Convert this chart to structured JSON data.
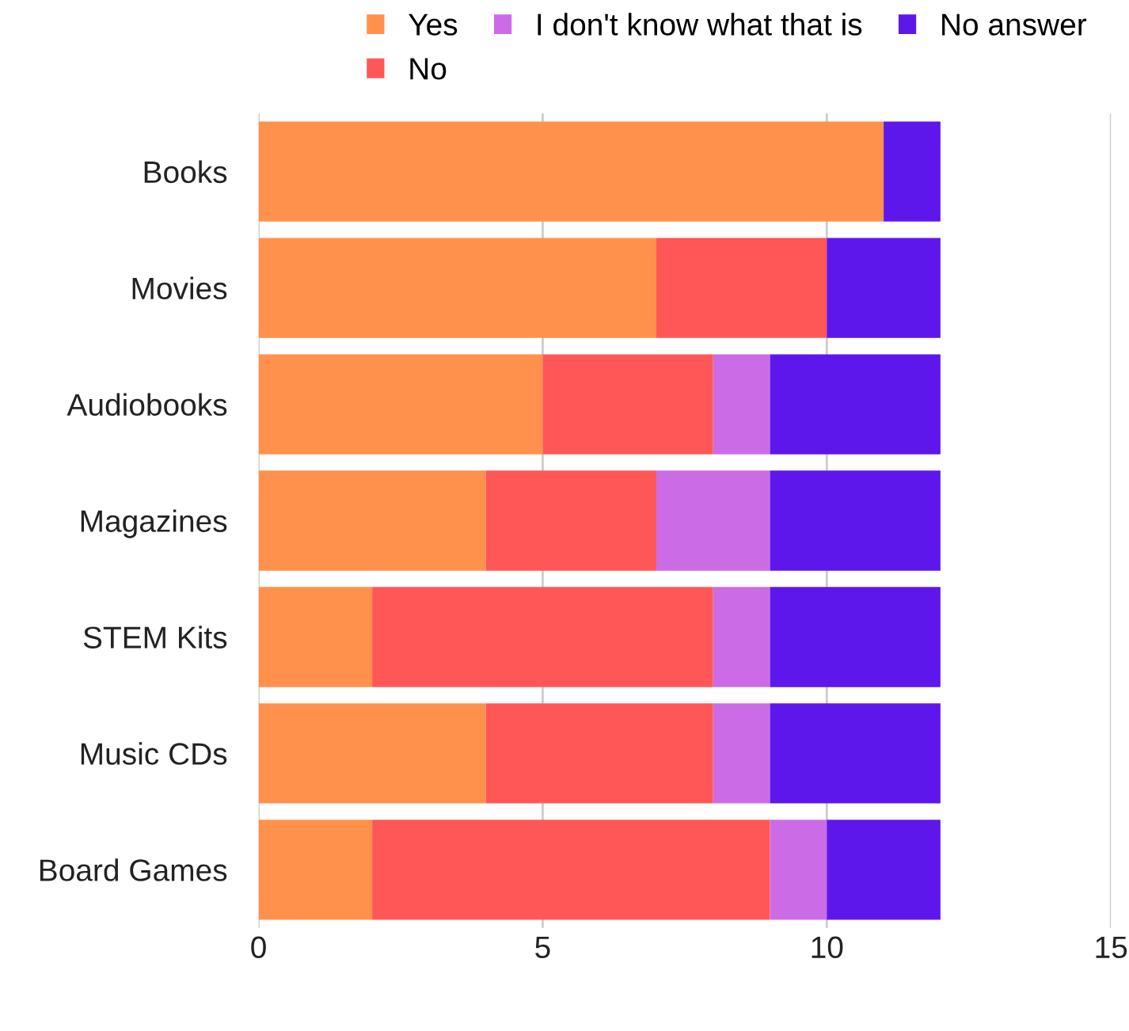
{
  "chart_data": {
    "type": "bar",
    "orientation": "horizontal",
    "stacked": true,
    "categories": [
      "Books",
      "Movies",
      "Audiobooks",
      "Magazines",
      "STEM Kits",
      "Music CDs",
      "Board Games"
    ],
    "series": [
      {
        "name": "Yes",
        "color": "#ff914d",
        "values": [
          11,
          7,
          5,
          4,
          2,
          4,
          2
        ]
      },
      {
        "name": "No",
        "color": "#ff5757",
        "values": [
          0,
          3,
          3,
          3,
          6,
          4,
          7
        ]
      },
      {
        "name": "I don't know what that is",
        "color": "#cb6ce6",
        "values": [
          0,
          0,
          1,
          2,
          1,
          1,
          1
        ]
      },
      {
        "name": "No answer",
        "color": "#5e17eb",
        "values": [
          1,
          2,
          3,
          3,
          3,
          3,
          2
        ]
      }
    ],
    "xlim": [
      0,
      15
    ],
    "xticks": [
      0,
      5,
      10,
      15
    ],
    "grid": "x",
    "legend": "top"
  }
}
